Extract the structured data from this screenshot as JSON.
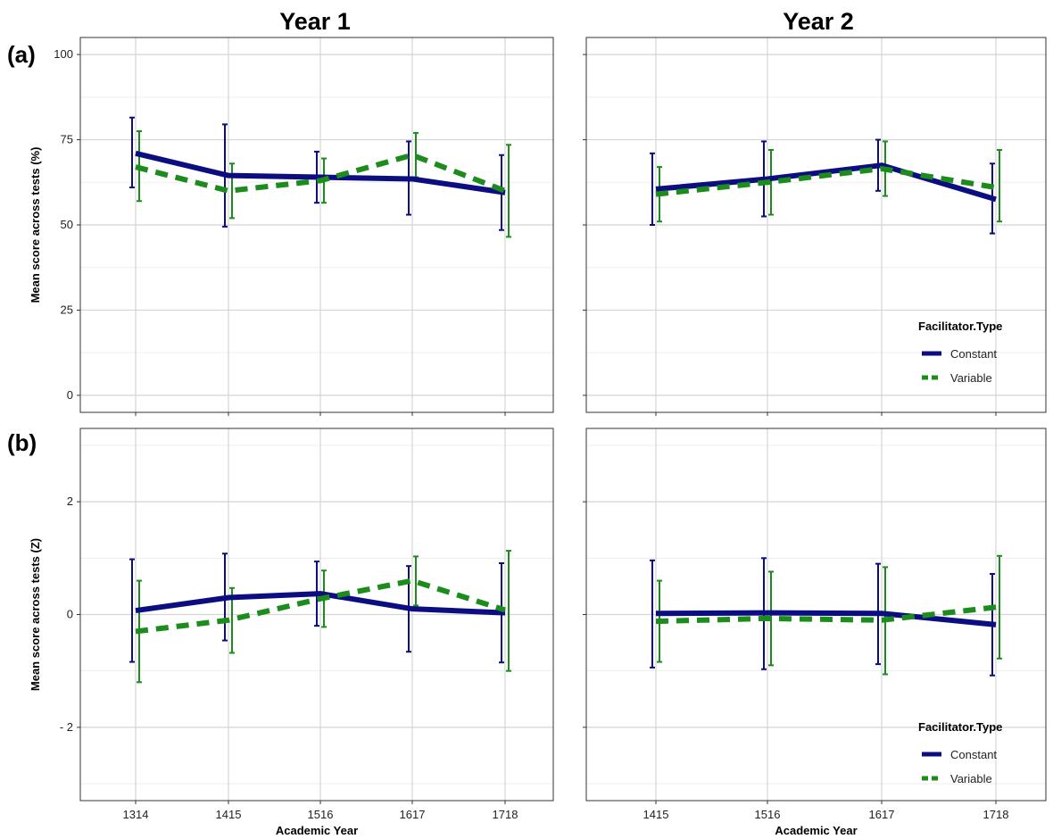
{
  "figure": {
    "columns": [
      "Year 1",
      "Year 2"
    ],
    "rows": [
      "(a)",
      "(b)"
    ]
  },
  "chart_data": [
    {
      "type": "line",
      "panel": "a-year1",
      "title": "Year 1",
      "row_label": "(a)",
      "ylabel": "Mean score across tests (%)",
      "xlabel": "",
      "categories": [
        "1314",
        "1415",
        "1516",
        "1617",
        "1718"
      ],
      "ylim": [
        -5,
        105
      ],
      "yticks": [
        0,
        25,
        50,
        75,
        100
      ],
      "ytick_labels": [
        "0",
        "25",
        "50",
        "75",
        "100"
      ],
      "grid": true,
      "show_x_tick_labels": false,
      "series": [
        {
          "name": "Constant",
          "values": [
            71,
            64.5,
            64,
            63.5,
            59.5
          ],
          "err_low": [
            61,
            49.5,
            56.5,
            53,
            48.5
          ],
          "err_high": [
            81.5,
            79.5,
            71.5,
            74.5,
            70.5
          ]
        },
        {
          "name": "Variable",
          "values": [
            67,
            60,
            63,
            70.5,
            60
          ],
          "err_low": [
            57,
            52,
            56.5,
            64,
            46.5
          ],
          "err_high": [
            77.5,
            68,
            69.5,
            77,
            73.5
          ]
        }
      ]
    },
    {
      "type": "line",
      "panel": "a-year2",
      "title": "Year 2",
      "categories": [
        "1415",
        "1516",
        "1617",
        "1718"
      ],
      "ylim": [
        -5,
        105
      ],
      "yticks": [
        0,
        25,
        50,
        75,
        100
      ],
      "grid": true,
      "show_x_tick_labels": false,
      "series": [
        {
          "name": "Constant",
          "values": [
            60.5,
            63.5,
            67.5,
            57.5
          ],
          "err_low": [
            50,
            52.5,
            60,
            47.5
          ],
          "err_high": [
            71,
            74.5,
            75,
            68
          ]
        },
        {
          "name": "Variable",
          "values": [
            59,
            62.5,
            66.5,
            61
          ],
          "err_low": [
            51,
            53,
            58.5,
            51
          ],
          "err_high": [
            67,
            72,
            74.5,
            72
          ]
        }
      ],
      "legend": {
        "title": "Facilitator.Type",
        "entries": [
          "Constant",
          "Variable"
        ],
        "position": "bottom-right"
      }
    },
    {
      "type": "line",
      "panel": "b-year1",
      "row_label": "(b)",
      "ylabel": "Mean score across tests (Z)",
      "xlabel": "Academic Year",
      "categories": [
        "1314",
        "1415",
        "1516",
        "1617",
        "1718"
      ],
      "ylim": [
        -3.3,
        3.3
      ],
      "yticks": [
        -2,
        0,
        2
      ],
      "ytick_labels": [
        "- 2",
        "0",
        "2"
      ],
      "grid": true,
      "show_x_tick_labels": true,
      "series": [
        {
          "name": "Constant",
          "values": [
            0.07,
            0.3,
            0.37,
            0.1,
            0.03
          ],
          "err_low": [
            -0.84,
            -0.46,
            -0.2,
            -0.66,
            -0.85
          ],
          "err_high": [
            0.98,
            1.08,
            0.94,
            0.86,
            0.91
          ]
        },
        {
          "name": "Variable",
          "values": [
            -0.3,
            -0.1,
            0.28,
            0.6,
            0.08
          ],
          "err_low": [
            -1.2,
            -0.68,
            -0.22,
            0.16,
            -1.0
          ],
          "err_high": [
            0.6,
            0.47,
            0.78,
            1.03,
            1.13
          ]
        }
      ]
    },
    {
      "type": "line",
      "panel": "b-year2",
      "xlabel": "Academic Year",
      "categories": [
        "1415",
        "1516",
        "1617",
        "1718"
      ],
      "ylim": [
        -3.3,
        3.3
      ],
      "yticks": [
        -2,
        0,
        2
      ],
      "grid": true,
      "show_x_tick_labels": true,
      "series": [
        {
          "name": "Constant",
          "values": [
            0.02,
            0.03,
            0.02,
            -0.18
          ],
          "err_low": [
            -0.94,
            -0.97,
            -0.88,
            -1.08
          ],
          "err_high": [
            0.96,
            1.0,
            0.9,
            0.72
          ]
        },
        {
          "name": "Variable",
          "values": [
            -0.12,
            -0.07,
            -0.1,
            0.13
          ],
          "err_low": [
            -0.84,
            -0.9,
            -1.06,
            -0.78
          ],
          "err_high": [
            0.6,
            0.76,
            0.84,
            1.04
          ]
        }
      ],
      "legend": {
        "title": "Facilitator.Type",
        "entries": [
          "Constant",
          "Variable"
        ],
        "position": "bottom-right"
      }
    }
  ],
  "styles": {
    "constant_color": "#0d0d82",
    "variable_color": "#1c8c1c",
    "grid_major": "#d4d4d4",
    "grid_minor": "#ededed",
    "frame_color": "#333333"
  }
}
